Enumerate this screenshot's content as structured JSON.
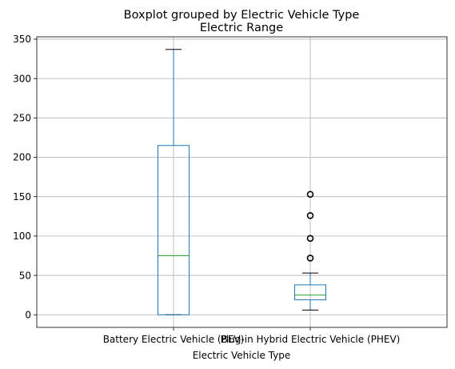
{
  "chart_data": {
    "type": "boxplot",
    "suptitle": "Boxplot grouped by Electric Vehicle Type",
    "title": "Electric Range",
    "xlabel": "Electric Vehicle Type",
    "ylabel": "",
    "ylim": [
      -16,
      353
    ],
    "yticks": [
      0,
      50,
      100,
      150,
      200,
      250,
      300,
      350
    ],
    "ytick_labels": [
      "0",
      "50",
      "100",
      "150",
      "200",
      "250",
      "300",
      "350"
    ],
    "grid": true,
    "categories": [
      "Battery Electric Vehicle (BEV)",
      "Plug-in Hybrid Electric Vehicle (PHEV)"
    ],
    "boxes": [
      {
        "category": "Battery Electric Vehicle (BEV)",
        "whisker_low": 0,
        "q1": 0,
        "median": 75,
        "q3": 215,
        "whisker_high": 337,
        "outliers": []
      },
      {
        "category": "Plug-in Hybrid Electric Vehicle (PHEV)",
        "whisker_low": 6,
        "q1": 19,
        "median": 25,
        "q3": 38,
        "whisker_high": 53,
        "outliers": [
          72,
          97,
          126,
          153
        ]
      }
    ],
    "colors": {
      "box": "#1f77b4",
      "median": "#2ca02c",
      "whisker_cap": "#000000",
      "grid": "#b0b0b0",
      "axes": "#000000"
    }
  }
}
